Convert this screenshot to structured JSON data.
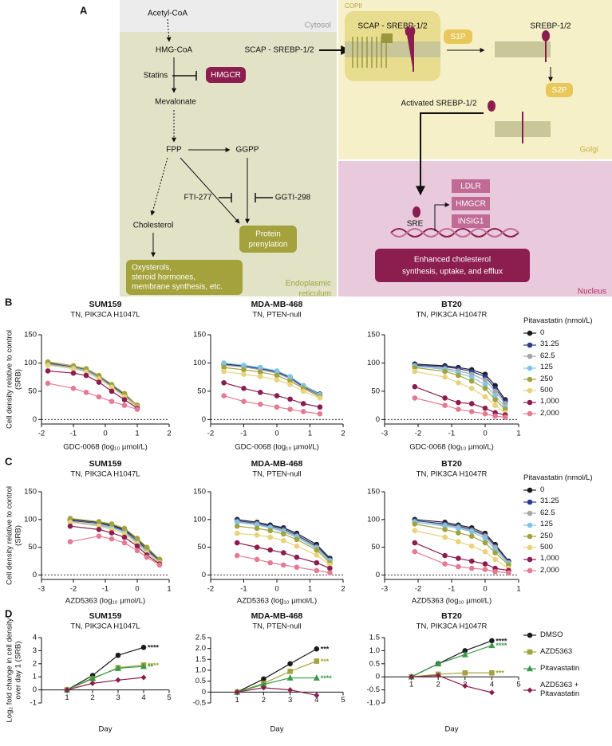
{
  "diagram": {
    "label": "A",
    "cytosol": "Cytosol",
    "er": [
      "Endoplasmic",
      "reticulum"
    ],
    "golgi": "Golgi",
    "nucleus": "Nucleus",
    "copii": "COPII",
    "acetyl_coa": "Acetyl-CoA",
    "hmg_coa": "HMG-CoA",
    "statins": "Statins",
    "hmgcr": "HMGCR",
    "mevalonate": "Mevalonate",
    "fpp": "FPP",
    "ggpp": "GGPP",
    "fti": "FTI-277",
    "ggti": "GGTI-298",
    "cholesterol": "Cholesterol",
    "prenylation": [
      "Protein",
      "prenylation"
    ],
    "oxysterols": [
      "Oxysterols,",
      "steroid hormones,",
      "membrane synthesis, etc."
    ],
    "scap_er": "SCAP - SREBP-1/2",
    "scap_golgi": "SCAP - SREBP-1/2",
    "s1p": "S1P",
    "srebp": "SREBP-1/2",
    "s2p": "S2P",
    "activated": "Activated SREBP-1/2",
    "sre": "SRE",
    "targets": [
      "LDLR",
      "HMGCR",
      "INSIG1"
    ],
    "outcome": [
      "Enhanced cholesterol",
      "synthesis, uptake, and efflux"
    ]
  },
  "chart_data": [
    {
      "type": "line",
      "panel": "B",
      "title": "SUM159",
      "subtitle": "TN, PIK3CA H1047L",
      "x_label": "GDC-0068 (log₁₀ µmol/L)",
      "y_label": [
        "Cell density relative to control",
        "(SRB)"
      ],
      "x": [
        -1.8,
        -1.0,
        -0.6,
        -0.2,
        0.2,
        0.6,
        1.0
      ],
      "xlim": [
        -2,
        2
      ],
      "xticks": [
        -2,
        -1,
        0,
        1,
        2
      ],
      "ylim": [
        -8,
        150
      ],
      "yticks": [
        0,
        50,
        100,
        150
      ],
      "zero_line": true,
      "series": [
        {
          "color": "#1a1a1a",
          "values": [
            100,
            92,
            88,
            75,
            60,
            45,
            25
          ]
        },
        {
          "color": "#2b3a8f",
          "values": [
            100,
            93,
            88,
            76,
            60,
            44,
            25
          ]
        },
        {
          "color": "#a6a6a6",
          "values": [
            98,
            92,
            87,
            75,
            58,
            42,
            24
          ]
        },
        {
          "color": "#7fc6e6",
          "values": [
            97,
            90,
            86,
            73,
            57,
            40,
            22
          ]
        },
        {
          "color": "#a4a23c",
          "values": [
            102,
            95,
            90,
            78,
            62,
            46,
            25
          ]
        },
        {
          "color": "#e8d27a",
          "values": [
            96,
            90,
            84,
            72,
            57,
            40,
            22
          ]
        },
        {
          "color": "#8c1d4f",
          "values": [
            86,
            82,
            78,
            66,
            50,
            35,
            20
          ]
        },
        {
          "color": "#e37b95",
          "values": [
            64,
            55,
            48,
            40,
            32,
            25,
            18
          ]
        }
      ]
    },
    {
      "type": "line",
      "title": "MDA-MB-468",
      "subtitle": "TN, PTEN-null",
      "x_label": "GDC-0068 (log₁₀ µmol/L)",
      "x": [
        -1.6,
        -1.0,
        -0.5,
        0,
        0.4,
        0.8,
        1.3
      ],
      "xlim": [
        -2,
        2
      ],
      "xticks": [
        -2,
        -1,
        0,
        1,
        2
      ],
      "ylim": [
        -8,
        150
      ],
      "yticks": [
        0,
        50,
        100,
        150
      ],
      "zero_line": true,
      "series": [
        {
          "color": "#1a1a1a",
          "values": [
            98,
            95,
            92,
            85,
            75,
            60,
            45
          ]
        },
        {
          "color": "#2b3a8f",
          "values": [
            97,
            94,
            90,
            84,
            74,
            58,
            43
          ]
        },
        {
          "color": "#a6a6a6",
          "values": [
            96,
            93,
            88,
            82,
            72,
            56,
            42
          ]
        },
        {
          "color": "#7fc6e6",
          "values": [
            100,
            96,
            92,
            86,
            76,
            60,
            44
          ]
        },
        {
          "color": "#a4a23c",
          "values": [
            92,
            88,
            84,
            78,
            68,
            55,
            40
          ]
        },
        {
          "color": "#e8d27a",
          "values": [
            85,
            80,
            76,
            70,
            62,
            50,
            38
          ]
        },
        {
          "color": "#8c1d4f",
          "values": [
            65,
            55,
            48,
            42,
            36,
            28,
            22
          ]
        },
        {
          "color": "#e37b95",
          "values": [
            42,
            32,
            27,
            22,
            18,
            14,
            10
          ]
        }
      ]
    },
    {
      "type": "line",
      "title": "BT20",
      "subtitle": "TN, PIK3CA H1047R",
      "x_label": "GDC-0068 (log₁₀ µmol/L)",
      "x": [
        -2.1,
        -1.2,
        -0.8,
        -0.4,
        0,
        0.3,
        0.6
      ],
      "xlim": [
        -3,
        1
      ],
      "xticks": [
        -3,
        -2,
        -1,
        0,
        1
      ],
      "ylim": [
        -8,
        150
      ],
      "yticks": [
        0,
        50,
        100,
        150
      ],
      "zero_line": true,
      "legend": "right",
      "legend_title": "Pitavastatin (nmol/L)",
      "series": [
        {
          "name": "0",
          "color": "#1a1a1a",
          "values": [
            98,
            95,
            92,
            88,
            80,
            60,
            35
          ]
        },
        {
          "name": "31.25",
          "color": "#2b3a8f",
          "values": [
            96,
            93,
            90,
            85,
            76,
            55,
            32
          ]
        },
        {
          "name": "62.5",
          "color": "#a6a6a6",
          "values": [
            94,
            90,
            86,
            80,
            70,
            50,
            28
          ]
        },
        {
          "name": "125",
          "color": "#7fc6e6",
          "values": [
            95,
            88,
            82,
            75,
            62,
            42,
            22
          ]
        },
        {
          "name": "250",
          "color": "#a4a23c",
          "values": [
            92,
            85,
            78,
            68,
            55,
            35,
            18
          ]
        },
        {
          "name": "500",
          "color": "#e8d27a",
          "values": [
            85,
            75,
            65,
            55,
            40,
            25,
            12
          ]
        },
        {
          "name": "1,000",
          "color": "#8c1d4f",
          "values": [
            58,
            38,
            30,
            28,
            20,
            12,
            8
          ]
        },
        {
          "name": "2,000",
          "color": "#e37b95",
          "values": [
            38,
            25,
            18,
            14,
            10,
            6,
            4
          ]
        }
      ]
    },
    {
      "type": "line",
      "panel": "C",
      "title": "SUM159",
      "subtitle": "TN, PIK3CA H1047L",
      "x_label": "AZD5363 (log₁₀ µmol/L)",
      "y_label": [
        "Cell density relative to control",
        "(SRB)"
      ],
      "x": [
        -2.1,
        -1.2,
        -0.8,
        -0.4,
        0,
        0.3,
        0.7
      ],
      "xlim": [
        -3,
        1
      ],
      "xticks": [
        -3,
        -2,
        -1,
        0,
        1
      ],
      "ylim": [
        -8,
        150
      ],
      "yticks": [
        0,
        50,
        100,
        150
      ],
      "zero_line": true,
      "series": [
        {
          "color": "#1a1a1a",
          "values": [
            100,
            95,
            90,
            82,
            65,
            48,
            28
          ]
        },
        {
          "color": "#2b3a8f",
          "values": [
            98,
            93,
            88,
            80,
            62,
            45,
            26
          ]
        },
        {
          "color": "#a6a6a6",
          "values": [
            96,
            90,
            86,
            78,
            60,
            43,
            24
          ]
        },
        {
          "color": "#7fc6e6",
          "values": [
            95,
            89,
            85,
            77,
            58,
            42,
            23
          ]
        },
        {
          "color": "#a4a23c",
          "values": [
            102,
            96,
            92,
            84,
            66,
            50,
            28
          ]
        },
        {
          "color": "#e8d27a",
          "values": [
            95,
            88,
            82,
            74,
            56,
            40,
            22
          ]
        },
        {
          "color": "#8c1d4f",
          "values": [
            88,
            82,
            76,
            68,
            52,
            36,
            20
          ]
        },
        {
          "color": "#e37b95",
          "values": [
            60,
            70,
            65,
            58,
            44,
            32,
            18
          ]
        }
      ]
    },
    {
      "type": "line",
      "title": "MDA-MB-468",
      "subtitle": "TN, PTEN-null",
      "x_label": "AZD5363 (log₁₀ µmol/L)",
      "x": [
        -1.2,
        -0.6,
        -0.2,
        0.2,
        0.6,
        1.2,
        1.6
      ],
      "xlim": [
        -2,
        2
      ],
      "xticks": [
        -2,
        -1,
        0,
        1,
        2
      ],
      "ylim": [
        -8,
        150
      ],
      "yticks": [
        0,
        50,
        100,
        150
      ],
      "zero_line": true,
      "series": [
        {
          "color": "#1a1a1a",
          "values": [
            100,
            95,
            90,
            85,
            75,
            55,
            30
          ]
        },
        {
          "color": "#2b3a8f",
          "values": [
            98,
            93,
            88,
            83,
            72,
            52,
            28
          ]
        },
        {
          "color": "#a6a6a6",
          "values": [
            96,
            92,
            86,
            80,
            70,
            50,
            26
          ]
        },
        {
          "color": "#7fc6e6",
          "values": [
            95,
            90,
            85,
            78,
            68,
            48,
            25
          ]
        },
        {
          "color": "#a4a23c",
          "values": [
            88,
            84,
            80,
            74,
            64,
            45,
            22
          ]
        },
        {
          "color": "#e8d27a",
          "values": [
            75,
            72,
            68,
            62,
            52,
            36,
            18
          ]
        },
        {
          "color": "#8c1d4f",
          "values": [
            58,
            50,
            45,
            40,
            32,
            22,
            12
          ]
        },
        {
          "color": "#e37b95",
          "values": [
            35,
            28,
            22,
            18,
            14,
            8,
            4
          ]
        }
      ]
    },
    {
      "type": "line",
      "title": "BT20",
      "subtitle": "TN, PIK3CA H1047R",
      "x_label": "AZD5363 (log₁₀ µmol/L)",
      "x": [
        -2.1,
        -1.2,
        -0.8,
        -0.4,
        0,
        0.3,
        0.7
      ],
      "xlim": [
        -3,
        1
      ],
      "xticks": [
        -3,
        -2,
        -1,
        0,
        1
      ],
      "ylim": [
        -8,
        150
      ],
      "yticks": [
        0,
        50,
        100,
        150
      ],
      "zero_line": true,
      "legend": "right",
      "legend_title": "Pitavastatin (nmol/L)",
      "series": [
        {
          "name": "0",
          "color": "#1a1a1a",
          "values": [
            100,
            95,
            90,
            85,
            75,
            55,
            25
          ]
        },
        {
          "name": "31.25",
          "color": "#2b3a8f",
          "values": [
            98,
            92,
            88,
            82,
            72,
            52,
            24
          ]
        },
        {
          "name": "62.5",
          "color": "#a6a6a6",
          "values": [
            95,
            90,
            86,
            80,
            70,
            50,
            22
          ]
        },
        {
          "name": "125",
          "color": "#7fc6e6",
          "values": [
            96,
            88,
            84,
            78,
            66,
            46,
            20
          ]
        },
        {
          "name": "250",
          "color": "#a4a23c",
          "values": [
            92,
            82,
            76,
            70,
            58,
            40,
            18
          ]
        },
        {
          "name": "500",
          "color": "#e8d27a",
          "values": [
            80,
            68,
            60,
            52,
            42,
            28,
            12
          ]
        },
        {
          "name": "1,000",
          "color": "#8c1d4f",
          "values": [
            58,
            35,
            30,
            25,
            20,
            12,
            8
          ]
        },
        {
          "name": "2,000",
          "color": "#e37b95",
          "values": [
            42,
            20,
            15,
            12,
            10,
            6,
            4
          ]
        }
      ]
    },
    {
      "type": "line",
      "panel": "D",
      "title": "SUM159",
      "subtitle": "TN, PIK3CA H1047L",
      "x_label": "Day",
      "y_label": [
        "Log₂ fold change in cell density",
        "over day 1 (SRB)"
      ],
      "x": [
        1,
        2,
        3,
        4
      ],
      "xlim": [
        0,
        5
      ],
      "xticks": [
        1,
        2,
        3,
        4,
        5
      ],
      "ylim": [
        -1,
        4
      ],
      "yticks": [
        -1,
        0,
        1,
        2,
        3,
        4
      ],
      "x_axis_at_zero": true,
      "series": [
        {
          "color": "#1a1a1a",
          "marker": "circle",
          "values": [
            0,
            1.1,
            2.65,
            3.25
          ],
          "significance": "****"
        },
        {
          "color": "#a4a23c",
          "marker": "square",
          "values": [
            0,
            0.85,
            1.7,
            1.9
          ],
          "significance": "****"
        },
        {
          "color": "#3a9a4a",
          "marker": "triangle",
          "values": [
            0,
            0.9,
            1.65,
            1.8
          ],
          "significance": "**"
        },
        {
          "color": "#8c1d4f",
          "marker": "diamond",
          "values": [
            0,
            0.5,
            0.75,
            0.95
          ]
        }
      ]
    },
    {
      "type": "line",
      "title": "MDA-MB-468",
      "subtitle": "TN, PTEN-null",
      "x_label": "Day",
      "x": [
        1,
        2,
        3,
        4
      ],
      "xlim": [
        0,
        5
      ],
      "xticks": [
        1,
        2,
        3,
        4,
        5
      ],
      "ylim": [
        -0.5,
        2.5
      ],
      "yticks": [
        -0.5,
        0,
        0.5,
        {
          "value": 1,
          "label": "1.0"
        },
        1.5,
        {
          "value": 2,
          "label": "2.0"
        },
        2.5
      ],
      "x_axis_at_zero": true,
      "series": [
        {
          "color": "#1a1a1a",
          "marker": "circle",
          "values": [
            0,
            0.6,
            1.3,
            1.98
          ],
          "significance": "***"
        },
        {
          "color": "#a4a23c",
          "marker": "square",
          "values": [
            0,
            0.4,
            0.95,
            1.42
          ],
          "significance": "***"
        },
        {
          "color": "#3a9a4a",
          "marker": "triangle",
          "values": [
            0,
            0.35,
            0.65,
            0.65
          ],
          "significance": "****"
        },
        {
          "color": "#8c1d4f",
          "marker": "diamond",
          "values": [
            0,
            0.2,
            0.1,
            -0.15
          ]
        }
      ]
    },
    {
      "type": "line",
      "title": "BT20",
      "subtitle": "TN, PIK3CA H1047R",
      "x_label": "Day",
      "x": [
        1,
        2,
        3,
        4
      ],
      "xlim": [
        0,
        5
      ],
      "xticks": [
        1,
        2,
        3,
        4,
        5
      ],
      "ylim": [
        -1,
        1.5
      ],
      "yticks": [
        {
          "value": -1,
          "label": "-1.0"
        },
        -0.5,
        0,
        0.5,
        {
          "value": 1,
          "label": "1.0"
        },
        1.5
      ],
      "x_axis_at_zero": true,
      "legend": "right",
      "series": [
        {
          "name": "DMSO",
          "color": "#1a1a1a",
          "marker": "circle",
          "values": [
            0,
            0.5,
            1,
            1.38
          ],
          "significance": "****"
        },
        {
          "name": "AZD5363",
          "color": "#a4a23c",
          "marker": "square",
          "values": [
            0,
            0.1,
            0.15,
            0.15
          ],
          "significance": "***"
        },
        {
          "name": "Pitavastatin",
          "color": "#3a9a4a",
          "marker": "triangle",
          "values": [
            0,
            0.5,
            0.85,
            1.2
          ],
          "significance": "****"
        },
        {
          "name": "AZD5363 + Pitavastatin",
          "color": "#8c1d4f",
          "marker": "diamond",
          "values": [
            0,
            0.05,
            -0.35,
            -0.6
          ]
        }
      ]
    }
  ]
}
